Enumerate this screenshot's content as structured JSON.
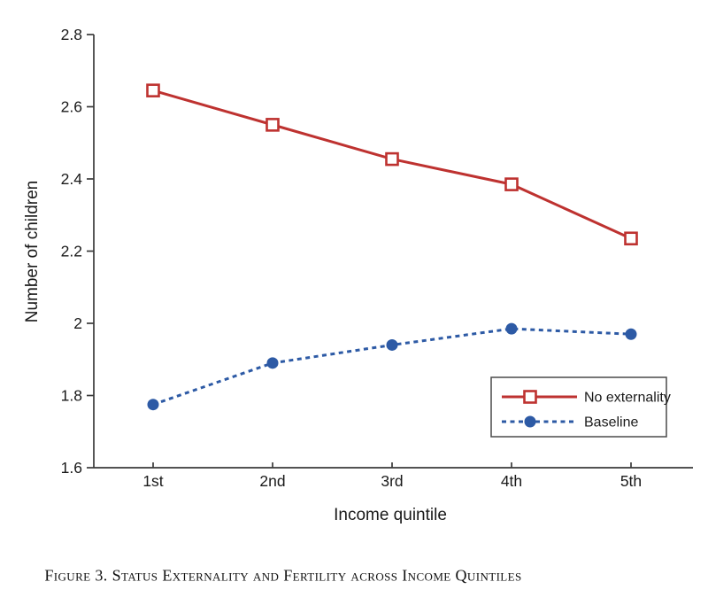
{
  "figure": {
    "caption": "Figure 3. Status Externality and Fertility across Income Quintiles"
  },
  "chart_data": {
    "type": "line",
    "title": "",
    "xlabel": "Income quintile",
    "ylabel": "Number of children",
    "categories": [
      "1st",
      "2nd",
      "3rd",
      "4th",
      "5th"
    ],
    "series": [
      {
        "name": "No externality",
        "values": [
          2.645,
          2.55,
          2.455,
          2.385,
          2.235
        ],
        "color": "#be3230",
        "line_style": "solid",
        "marker": "open-square"
      },
      {
        "name": "Baseline",
        "values": [
          1.775,
          1.89,
          1.94,
          1.985,
          1.97
        ],
        "color": "#2d5aa5",
        "line_style": "dotted",
        "marker": "filled-circle"
      }
    ],
    "ylim": [
      1.6,
      2.8
    ],
    "yticks": [
      2.8,
      2.6,
      2.4,
      2.2,
      2,
      1.8,
      1.6
    ],
    "ytick_labels": [
      "2.8",
      "2.6",
      "2.4",
      "2.2",
      "2",
      "1.8",
      "1.6"
    ],
    "grid": false,
    "legend_position": "lower-right",
    "axis_color": "#3a3a3a",
    "legend_border_color": "#4a4a4a"
  }
}
